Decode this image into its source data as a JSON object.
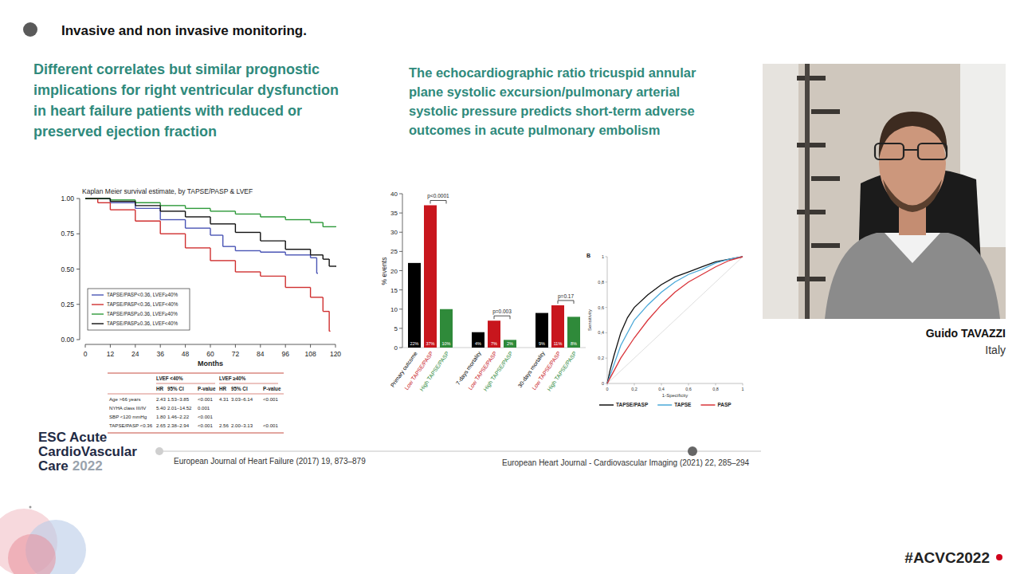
{
  "slide": {
    "header": "Invasive and non invasive monitoring.",
    "left_title": [
      "Different correlates but similar prognostic",
      "implications for right ventricular dysfunction",
      "in heart failure patients with reduced or",
      "preserved ejection fraction"
    ],
    "right_title": [
      "The echocardiographic ratio tricuspid annular",
      "plane systolic excursion/pulmonary arterial",
      "systolic pressure predicts short-term adverse",
      "outcomes in acute pulmonary embolism"
    ],
    "left_citation": "European Journal of Heart Failure (2017) 19, 873–879",
    "right_citation": "European Heart Journal - Cardiovascular Imaging (2021) 22, 285–294",
    "speaker_name": "Guido TAVAZZI",
    "speaker_country": "Italy",
    "logo": [
      "ESC Acute",
      "CardioVascular",
      "Care",
      "2022"
    ],
    "hashtag": "#ACVC2022"
  },
  "hr_table": {
    "groups": [
      "LVEF <40%",
      "LVEF ≥40%"
    ],
    "columns": [
      "HR",
      "95% CI",
      "P-value"
    ],
    "rows": [
      [
        "Age >66 years",
        "2.43",
        "1.53–3.85",
        "<0.001",
        "4.31",
        "3.03–6.14",
        "<0.001"
      ],
      [
        "NYHA class III/IV",
        "5.40",
        "2.01–14.52",
        "0.001",
        null,
        null,
        null
      ],
      [
        "SBP <120 mmHg",
        "1.80",
        "1.46–2.22",
        "<0.001",
        null,
        null,
        null
      ],
      [
        "TAPSE/PASP <0.36",
        "2.65",
        "2.38–2.94",
        "<0.001",
        "2.56",
        "2.00–3.13",
        "<0.001"
      ]
    ]
  },
  "chart_data": [
    {
      "type": "line",
      "title": "Kaplan Meier survival estimate, by TAPSE/PASP & LVEF",
      "x_label": "Months",
      "xlim": [
        0,
        120
      ],
      "xticks": [
        0,
        12,
        24,
        36,
        48,
        60,
        72,
        84,
        96,
        108,
        120
      ],
      "ylim": [
        0,
        1
      ],
      "yticks": [
        {
          "value": 0,
          "label": "0.00"
        },
        {
          "value": 0.25,
          "label": "0.25"
        },
        {
          "value": 0.5,
          "label": "0.50"
        },
        {
          "value": 0.75,
          "label": "0.75"
        },
        {
          "value": 1,
          "label": "1.00"
        }
      ],
      "legend": "lower left",
      "line_style": "step",
      "series": [
        {
          "name": "TAPSE/PASP<0.36, LVEF≥40%",
          "color": "#4a55b5",
          "x": [
            0,
            12,
            24,
            36,
            48,
            60,
            66,
            72,
            84,
            96,
            108,
            111
          ],
          "values": [
            1,
            0.97,
            0.93,
            0.85,
            0.79,
            0.74,
            0.66,
            0.63,
            0.62,
            0.6,
            0.58,
            0.47
          ]
        },
        {
          "name": "TAPSE/PASP<0.36, LVEF<40%",
          "color": "#d03030",
          "x": [
            0,
            6,
            12,
            24,
            36,
            48,
            60,
            72,
            84,
            96,
            108,
            114,
            117
          ],
          "values": [
            1,
            0.97,
            0.92,
            0.84,
            0.75,
            0.65,
            0.56,
            0.48,
            0.45,
            0.37,
            0.3,
            0.2,
            0.06
          ]
        },
        {
          "name": "TAPSE/PASP≥0.36, LVEF≥40%",
          "color": "#2e9a3a",
          "x": [
            0,
            12,
            24,
            36,
            48,
            60,
            72,
            84,
            96,
            108,
            114,
            120
          ],
          "values": [
            1,
            0.99,
            0.97,
            0.95,
            0.93,
            0.91,
            0.89,
            0.87,
            0.85,
            0.83,
            0.8,
            0.8
          ]
        },
        {
          "name": "TAPSE/PASP≥0.36, LVEF<40%",
          "color": "#111111",
          "x": [
            0,
            12,
            24,
            36,
            48,
            60,
            72,
            84,
            96,
            108,
            114,
            117,
            120
          ],
          "values": [
            1,
            0.98,
            0.95,
            0.91,
            0.87,
            0.82,
            0.76,
            0.7,
            0.64,
            0.6,
            0.57,
            0.52,
            0.52
          ]
        }
      ]
    },
    {
      "type": "bar",
      "y_label": "% events",
      "categories": [
        "Primary outcome",
        "Low TAPSE/PASP",
        "High TAPSE/PASP",
        "7-days mortality",
        "Low TAPSE/PASP",
        "High TAPSE/PASP",
        "30-days mortality",
        "Low TAPSE/PASP",
        "High TAPSE/PASP"
      ],
      "values": [
        22,
        37,
        10,
        4,
        7,
        2,
        9,
        11,
        8
      ],
      "value_labels": [
        "22%",
        "37%",
        "10%",
        "4%",
        "7%",
        "2%",
        "9%",
        "11%",
        "8%"
      ],
      "colors": [
        "#000000",
        "#c8161d",
        "#2f8a3a",
        "#000000",
        "#c8161d",
        "#2f8a3a",
        "#000000",
        "#c8161d",
        "#2f8a3a"
      ],
      "ylim": [
        0,
        40
      ],
      "yticks": [
        0,
        5,
        10,
        15,
        20,
        25,
        30,
        35,
        40
      ],
      "data_labels": true,
      "annotations": [
        "p<0.0001",
        "p=0.003",
        "p=0.17"
      ]
    },
    {
      "type": "line",
      "panel_label": "B",
      "x_label": "1-Specificity",
      "y_label": "Sensitivity",
      "xlim": [
        0,
        1
      ],
      "xticks": [
        0,
        {
          "value": 0.2,
          "label": "0,2"
        },
        {
          "value": 0.4,
          "label": "0,4"
        },
        {
          "value": 0.6,
          "label": "0,6"
        },
        {
          "value": 0.8,
          "label": "0,8"
        },
        1
      ],
      "ylim": [
        0,
        1
      ],
      "yticks": [
        0,
        {
          "value": 0.2,
          "label": "0,2"
        },
        {
          "value": 0.4,
          "label": "0,4"
        },
        {
          "value": 0.6,
          "label": "0,6"
        },
        {
          "value": 0.8,
          "label": "0,8"
        },
        1
      ],
      "legend": "bottom",
      "series": [
        {
          "name": "TAPSE/PASP",
          "color": "#111111",
          "x": [
            0,
            0.02,
            0.05,
            0.1,
            0.15,
            0.2,
            0.3,
            0.4,
            0.5,
            0.6,
            0.7,
            0.8,
            0.9,
            1
          ],
          "values": [
            0,
            0.1,
            0.22,
            0.4,
            0.52,
            0.6,
            0.7,
            0.78,
            0.84,
            0.88,
            0.92,
            0.96,
            0.98,
            1
          ]
        },
        {
          "name": "TAPSE",
          "color": "#4aa8d8",
          "x": [
            0,
            0.05,
            0.1,
            0.2,
            0.3,
            0.4,
            0.5,
            0.6,
            0.7,
            0.8,
            0.9,
            1
          ],
          "values": [
            0,
            0.15,
            0.3,
            0.5,
            0.62,
            0.72,
            0.8,
            0.86,
            0.9,
            0.95,
            0.98,
            1
          ]
        },
        {
          "name": "PASP",
          "color": "#d9343a",
          "x": [
            0,
            0.05,
            0.1,
            0.2,
            0.3,
            0.4,
            0.5,
            0.6,
            0.7,
            0.8,
            0.9,
            1
          ],
          "values": [
            0,
            0.1,
            0.2,
            0.36,
            0.5,
            0.62,
            0.72,
            0.8,
            0.86,
            0.92,
            0.97,
            1
          ]
        }
      ]
    }
  ]
}
